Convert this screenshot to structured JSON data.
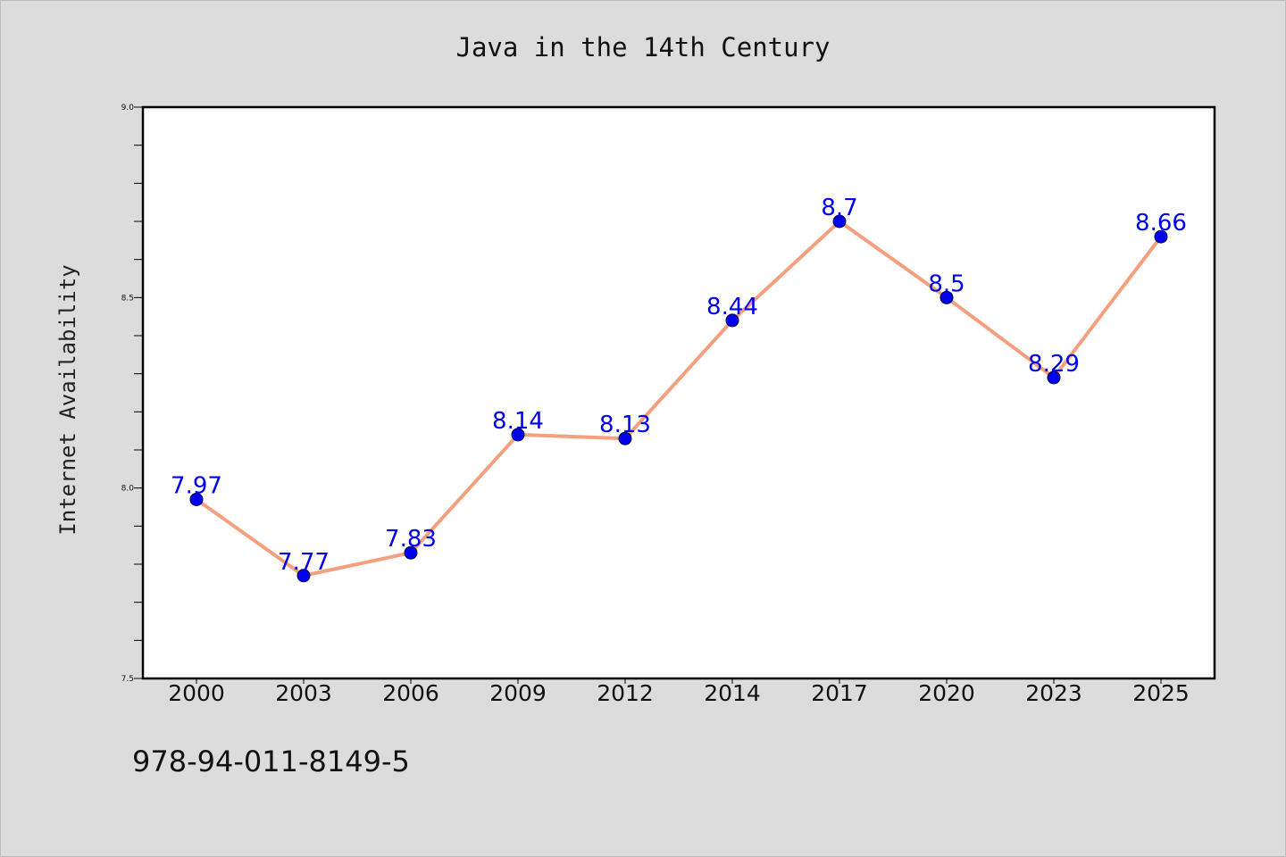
{
  "chart_data": {
    "type": "line",
    "title": "Java in the 14th Century",
    "xlabel": "",
    "ylabel": "Internet Availability",
    "categories": [
      "2000",
      "2003",
      "2006",
      "2009",
      "2012",
      "2014",
      "2017",
      "2020",
      "2023",
      "2025"
    ],
    "series": [
      {
        "values": [
          7.97,
          7.77,
          7.83,
          8.14,
          8.13,
          8.44,
          8.7,
          8.5,
          8.29,
          8.66
        ],
        "labels": [
          "7.97",
          "7.77",
          "7.83",
          "8.14",
          "8.13",
          "8.44",
          "8.7",
          "8.5",
          "8.29",
          "8.66"
        ],
        "line_color": "#f4a07e",
        "marker_color": "#0000ee"
      }
    ],
    "ylim": [
      7.5,
      9.0
    ],
    "y_ticks": [
      "7.5",
      "8.0",
      "8.5",
      "9.0"
    ],
    "grid": false,
    "legend": "none"
  },
  "footer": {
    "code": "978-94-011-8149-5"
  },
  "colors": {
    "background": "#dcdcdc",
    "plot_background": "#ffffff",
    "axis": "#000000"
  }
}
